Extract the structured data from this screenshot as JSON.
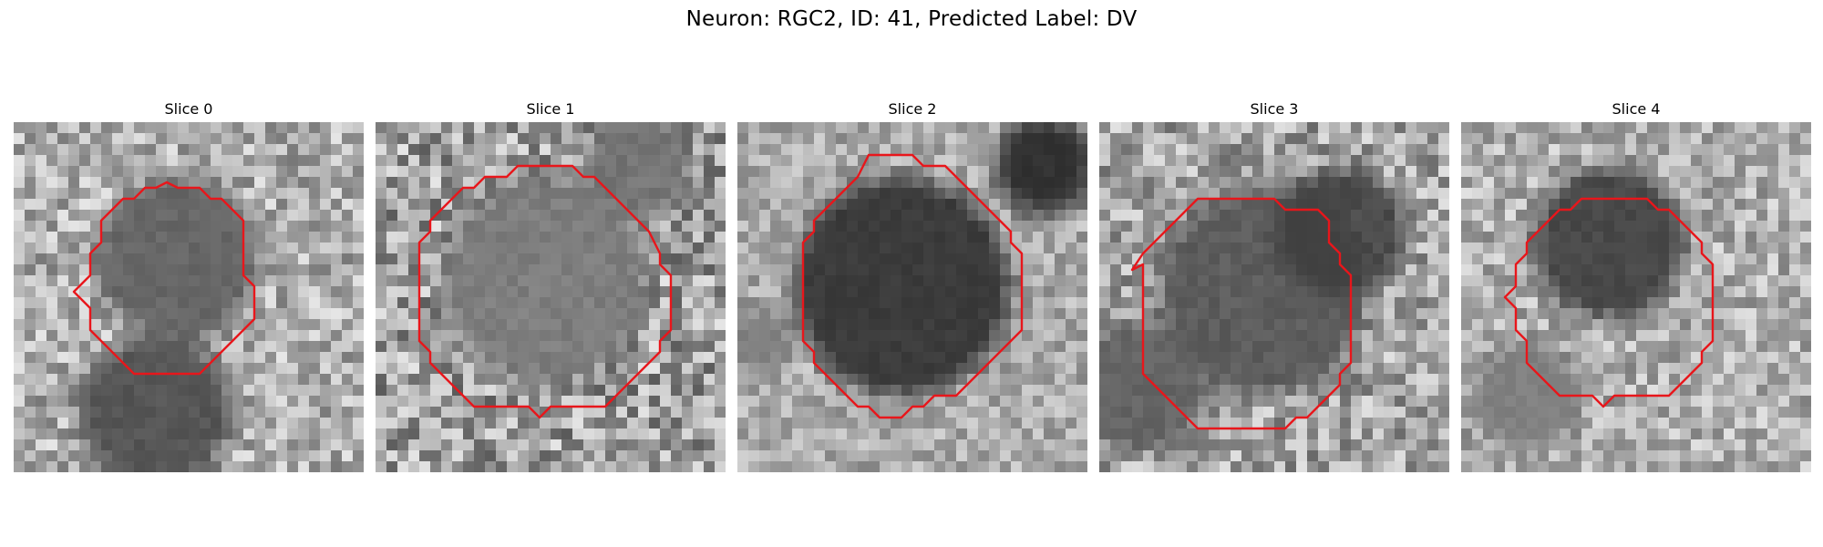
{
  "figure": {
    "title": "Neuron: RGC2, ID: 41, Predicted Label: DV"
  },
  "panels": [
    {
      "title": "Slice 0"
    },
    {
      "title": "Slice 1"
    },
    {
      "title": "Slice 2"
    },
    {
      "title": "Slice 3"
    },
    {
      "title": "Slice 4"
    }
  ],
  "colors": {
    "roi_outline": "#e8161b",
    "background": "#ffffff"
  },
  "image_colormap": "grayscale"
}
